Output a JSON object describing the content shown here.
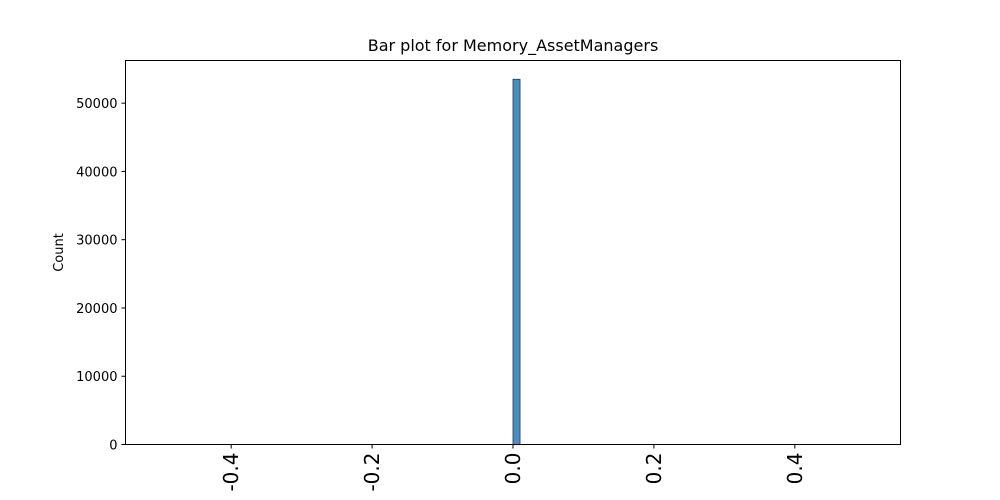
{
  "chart_data": {
    "type": "bar",
    "title": "Bar plot for Memory_AssetManagers",
    "xlabel": "",
    "ylabel": "Count",
    "xlim": [
      -0.55,
      0.55
    ],
    "ylim": [
      0,
      56250
    ],
    "x_ticks": [
      -0.4,
      -0.2,
      0.0,
      0.2,
      0.4
    ],
    "x_tick_labels": [
      "-0.4",
      "-0.2",
      "0.0",
      "0.2",
      "0.4"
    ],
    "y_ticks": [
      0,
      10000,
      20000,
      30000,
      40000,
      50000
    ],
    "y_tick_labels": [
      "0",
      "10000",
      "20000",
      "30000",
      "40000",
      "50000"
    ],
    "bars": [
      {
        "x_start": 0.0,
        "x_end": 0.01,
        "value": 53500
      }
    ],
    "bar_color": "#4c8dbf",
    "bar_edge_color": "#1f3b52",
    "grid": false,
    "legend": false
  }
}
